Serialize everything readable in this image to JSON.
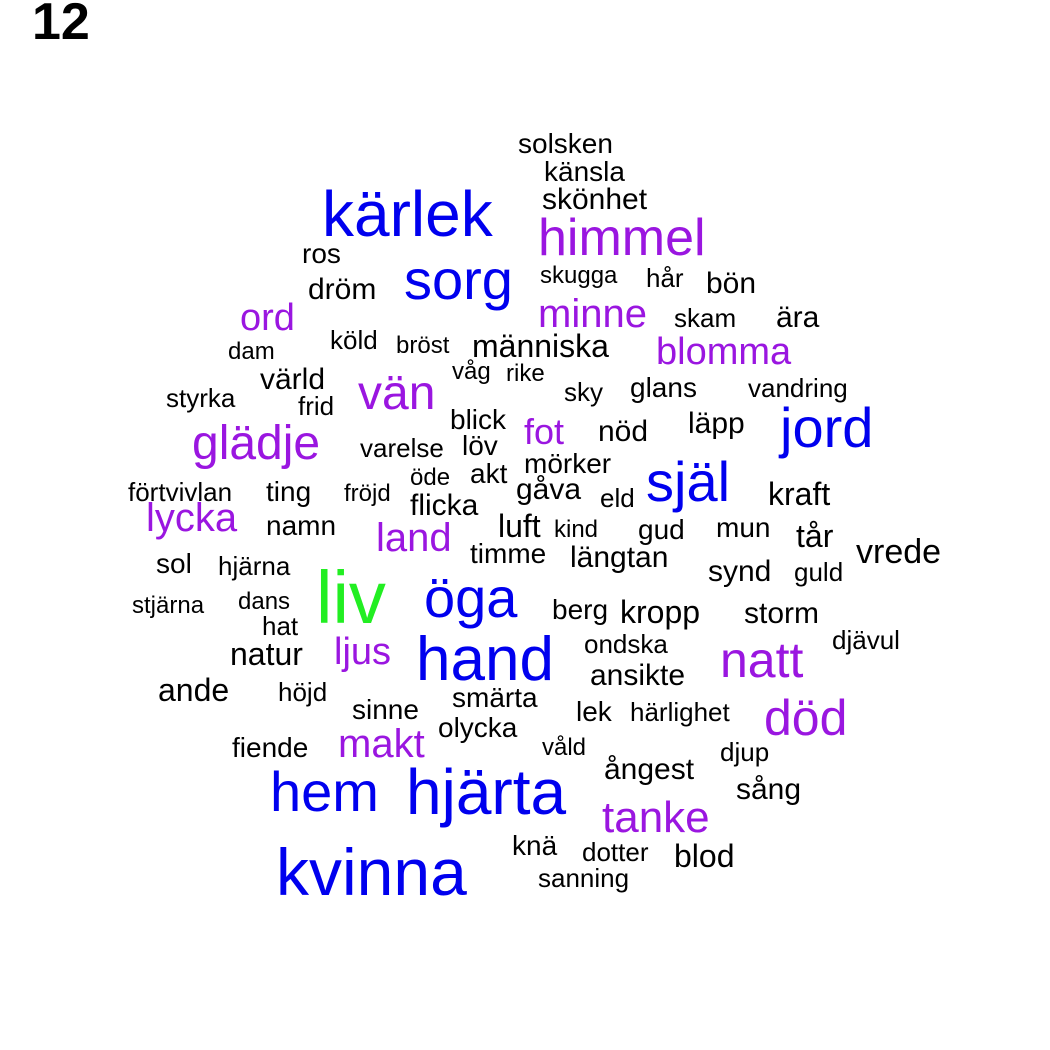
{
  "panel_label": "12",
  "colors": {
    "green": "#22ee22",
    "blue": "#0000ee",
    "purple": "#9a16e0",
    "black": "#000000"
  },
  "words": [
    {
      "text": "liv",
      "color": "green"
    },
    {
      "text": "kärlek",
      "color": "blue"
    },
    {
      "text": "hjärta",
      "color": "blue"
    },
    {
      "text": "kvinna",
      "color": "blue"
    },
    {
      "text": "hand",
      "color": "blue"
    },
    {
      "text": "öga",
      "color": "blue"
    },
    {
      "text": "hem",
      "color": "blue"
    },
    {
      "text": "själ",
      "color": "blue"
    },
    {
      "text": "jord",
      "color": "blue"
    },
    {
      "text": "sorg",
      "color": "blue"
    },
    {
      "text": "himmel",
      "color": "purple"
    },
    {
      "text": "död",
      "color": "purple"
    },
    {
      "text": "natt",
      "color": "purple"
    },
    {
      "text": "glädje",
      "color": "purple"
    },
    {
      "text": "vän",
      "color": "purple"
    },
    {
      "text": "tanke",
      "color": "purple"
    },
    {
      "text": "makt",
      "color": "purple"
    },
    {
      "text": "lycka",
      "color": "purple"
    },
    {
      "text": "blomma",
      "color": "purple"
    },
    {
      "text": "minne",
      "color": "purple"
    },
    {
      "text": "ord",
      "color": "purple"
    },
    {
      "text": "land",
      "color": "purple"
    },
    {
      "text": "ljus",
      "color": "purple"
    },
    {
      "text": "fot",
      "color": "purple"
    },
    {
      "text": "solsken",
      "color": "black"
    },
    {
      "text": "känsla",
      "color": "black"
    },
    {
      "text": "skönhet",
      "color": "black"
    },
    {
      "text": "ros",
      "color": "black"
    },
    {
      "text": "dröm",
      "color": "black"
    },
    {
      "text": "skugga",
      "color": "black"
    },
    {
      "text": "hår",
      "color": "black"
    },
    {
      "text": "bön",
      "color": "black"
    },
    {
      "text": "skam",
      "color": "black"
    },
    {
      "text": "ära",
      "color": "black"
    },
    {
      "text": "köld",
      "color": "black"
    },
    {
      "text": "bröst",
      "color": "black"
    },
    {
      "text": "människa",
      "color": "black"
    },
    {
      "text": "dam",
      "color": "black"
    },
    {
      "text": "våg",
      "color": "black"
    },
    {
      "text": "rike",
      "color": "black"
    },
    {
      "text": "värld",
      "color": "black"
    },
    {
      "text": "styrka",
      "color": "black"
    },
    {
      "text": "frid",
      "color": "black"
    },
    {
      "text": "sky",
      "color": "black"
    },
    {
      "text": "glans",
      "color": "black"
    },
    {
      "text": "vandring",
      "color": "black"
    },
    {
      "text": "blick",
      "color": "black"
    },
    {
      "text": "läpp",
      "color": "black"
    },
    {
      "text": "varelse",
      "color": "black"
    },
    {
      "text": "löv",
      "color": "black"
    },
    {
      "text": "nöd",
      "color": "black"
    },
    {
      "text": "mörker",
      "color": "black"
    },
    {
      "text": "öde",
      "color": "black"
    },
    {
      "text": "akt",
      "color": "black"
    },
    {
      "text": "förtvivlan",
      "color": "black"
    },
    {
      "text": "ting",
      "color": "black"
    },
    {
      "text": "fröjd",
      "color": "black"
    },
    {
      "text": "gåva",
      "color": "black"
    },
    {
      "text": "eld",
      "color": "black"
    },
    {
      "text": "kraft",
      "color": "black"
    },
    {
      "text": "flicka",
      "color": "black"
    },
    {
      "text": "namn",
      "color": "black"
    },
    {
      "text": "luft",
      "color": "black"
    },
    {
      "text": "kind",
      "color": "black"
    },
    {
      "text": "gud",
      "color": "black"
    },
    {
      "text": "mun",
      "color": "black"
    },
    {
      "text": "tår",
      "color": "black"
    },
    {
      "text": "timme",
      "color": "black"
    },
    {
      "text": "längtan",
      "color": "black"
    },
    {
      "text": "vrede",
      "color": "black"
    },
    {
      "text": "sol",
      "color": "black"
    },
    {
      "text": "hjärna",
      "color": "black"
    },
    {
      "text": "synd",
      "color": "black"
    },
    {
      "text": "guld",
      "color": "black"
    },
    {
      "text": "stjärna",
      "color": "black"
    },
    {
      "text": "dans",
      "color": "black"
    },
    {
      "text": "berg",
      "color": "black"
    },
    {
      "text": "kropp",
      "color": "black"
    },
    {
      "text": "storm",
      "color": "black"
    },
    {
      "text": "hat",
      "color": "black"
    },
    {
      "text": "djävul",
      "color": "black"
    },
    {
      "text": "ondska",
      "color": "black"
    },
    {
      "text": "natur",
      "color": "black"
    },
    {
      "text": "ansikte",
      "color": "black"
    },
    {
      "text": "ande",
      "color": "black"
    },
    {
      "text": "höjd",
      "color": "black"
    },
    {
      "text": "smärta",
      "color": "black"
    },
    {
      "text": "sinne",
      "color": "black"
    },
    {
      "text": "lek",
      "color": "black"
    },
    {
      "text": "härlighet",
      "color": "black"
    },
    {
      "text": "olycka",
      "color": "black"
    },
    {
      "text": "fiende",
      "color": "black"
    },
    {
      "text": "våld",
      "color": "black"
    },
    {
      "text": "djup",
      "color": "black"
    },
    {
      "text": "ångest",
      "color": "black"
    },
    {
      "text": "sång",
      "color": "black"
    },
    {
      "text": "knä",
      "color": "black"
    },
    {
      "text": "dotter",
      "color": "black"
    },
    {
      "text": "blod",
      "color": "black"
    },
    {
      "text": "sanning",
      "color": "black"
    }
  ]
}
